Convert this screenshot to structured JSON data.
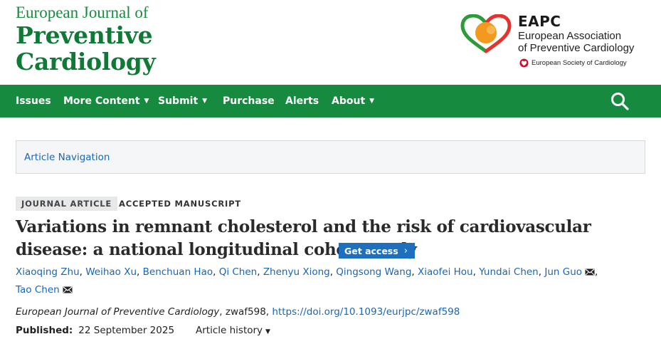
{
  "journal": {
    "line1": "European Journal of",
    "line2": "Preventive",
    "line3": "Cardiology"
  },
  "society": {
    "abbr": "EAPC",
    "name_line1": "European Association",
    "name_line2": "of Preventive Cardiology",
    "parent": "European Society of Cardiology"
  },
  "nav": {
    "items": [
      {
        "label": "Issues",
        "dropdown": false
      },
      {
        "label": "More Content",
        "dropdown": true
      },
      {
        "label": "Submit",
        "dropdown": true
      },
      {
        "label": "Purchase",
        "dropdown": false
      },
      {
        "label": "Alerts",
        "dropdown": false
      },
      {
        "label": "About",
        "dropdown": true
      }
    ],
    "caret": "▼",
    "search_icon": "search-icon"
  },
  "article_nav": {
    "label": "Article Navigation"
  },
  "tags": {
    "type": "JOURNAL ARTICLE",
    "status": "ACCEPTED MANUSCRIPT"
  },
  "article": {
    "title": "Variations in remnant cholesterol and the risk of cardiovascular disease: a national longitudinal cohort study",
    "get_access": "Get access",
    "get_access_chevron": "›",
    "authors": [
      {
        "name": "Xiaoqing Zhu",
        "corresponding": false
      },
      {
        "name": "Weihao Xu",
        "corresponding": false
      },
      {
        "name": "Benchuan Hao",
        "corresponding": false
      },
      {
        "name": "Qi Chen",
        "corresponding": false
      },
      {
        "name": "Zhenyu Xiong",
        "corresponding": false
      },
      {
        "name": "Qingsong Wang",
        "corresponding": false
      },
      {
        "name": "Xiaofei Hou",
        "corresponding": false
      },
      {
        "name": "Yundai Chen",
        "corresponding": false
      },
      {
        "name": "Jun Guo",
        "corresponding": true
      },
      {
        "name": "Tao Chen",
        "corresponding": true
      }
    ],
    "citation_journal": "European Journal of Preventive Cardiology",
    "citation_id": ", zwaf598, ",
    "doi": "https://doi.org/10.1093/eurjpc/zwaf598",
    "published_label": "Published:",
    "published_date": "22 September 2025",
    "history_label": "Article history",
    "history_caret": "▼"
  },
  "colors": {
    "brand_green": "#168a3f",
    "link_blue": "#1a66b3",
    "button_blue": "#1f6fbf"
  }
}
